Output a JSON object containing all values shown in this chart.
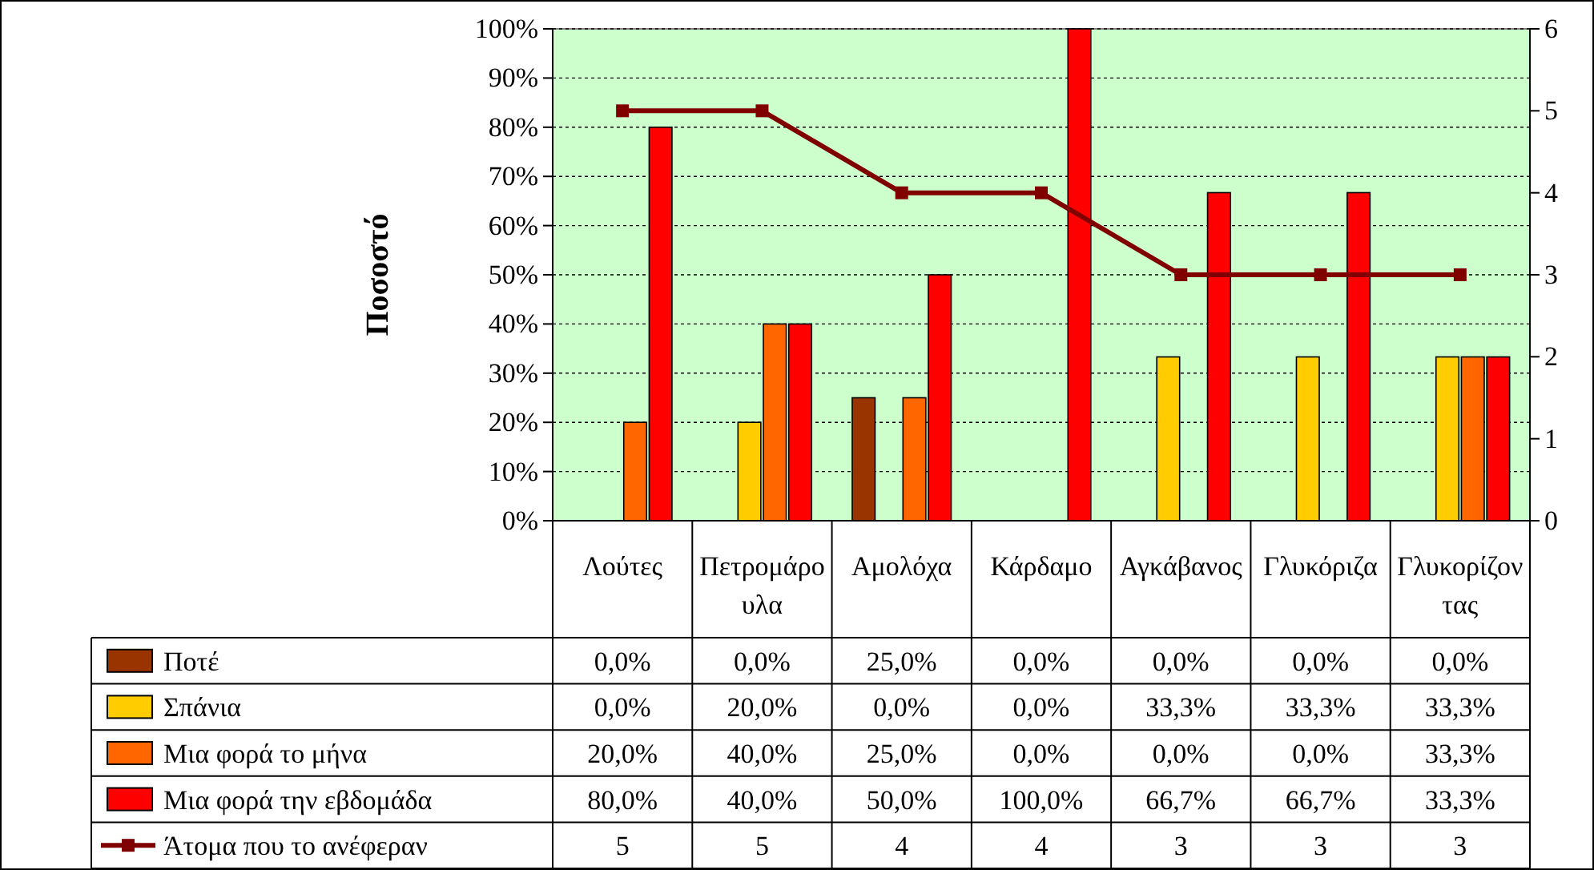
{
  "chart_data": {
    "type": "bar",
    "ylabel": "Ποσοστό",
    "categories": [
      "Λούτες",
      "Πετρομάρουλα",
      "Αμολόχα",
      "Κάρδαμο",
      "Αγκάβανος",
      "Γλυκόριζα",
      "Γλυκορίζοντας"
    ],
    "series": [
      {
        "name": "Ποτέ",
        "color": "#993300",
        "values": [
          0,
          0,
          25,
          0,
          0,
          0,
          0
        ],
        "value_labels": [
          "0,0%",
          "0,0%",
          "25,0%",
          "0,0%",
          "0,0%",
          "0,0%",
          "0,0%"
        ]
      },
      {
        "name": "Σπάνια",
        "color": "#ffcc00",
        "values": [
          0,
          20,
          0,
          0,
          33.3,
          33.3,
          33.3
        ],
        "value_labels": [
          "0,0%",
          "20,0%",
          "0,0%",
          "0,0%",
          "33,3%",
          "33,3%",
          "33,3%"
        ]
      },
      {
        "name": "Μια φορά το μήνα",
        "color": "#ff6600",
        "values": [
          20,
          40,
          25,
          0,
          0,
          0,
          33.3
        ],
        "value_labels": [
          "20,0%",
          "40,0%",
          "25,0%",
          "0,0%",
          "0,0%",
          "0,0%",
          "33,3%"
        ]
      },
      {
        "name": "Μια φορά την εβδομάδα",
        "color": "#ff0000",
        "values": [
          80,
          40,
          50,
          100,
          66.7,
          66.7,
          33.3
        ],
        "value_labels": [
          "80,0%",
          "40,0%",
          "50,0%",
          "100,0%",
          "66,7%",
          "66,7%",
          "33,3%"
        ]
      },
      {
        "name": "Άτομα που το ανέφεραν",
        "type": "line",
        "axis": "y2",
        "color": "#800000",
        "values": [
          5,
          5,
          4,
          4,
          3,
          3,
          3
        ],
        "value_labels": [
          "5",
          "5",
          "4",
          "4",
          "3",
          "3",
          "3"
        ]
      }
    ],
    "ylim": [
      0,
      100
    ],
    "yticks": [
      {
        "value": 0,
        "label": "0%"
      },
      {
        "value": 10,
        "label": "10%"
      },
      {
        "value": 20,
        "label": "20%"
      },
      {
        "value": 30,
        "label": "30%"
      },
      {
        "value": 40,
        "label": "40%"
      },
      {
        "value": 50,
        "label": "50%"
      },
      {
        "value": 60,
        "label": "60%"
      },
      {
        "value": 70,
        "label": "70%"
      },
      {
        "value": 80,
        "label": "80%"
      },
      {
        "value": 90,
        "label": "90%"
      },
      {
        "value": 100,
        "label": "100%"
      }
    ],
    "y2lim": [
      0,
      6
    ],
    "y2ticks": [
      0,
      1,
      2,
      3,
      4,
      5,
      6
    ],
    "grid": "y",
    "legend": "bottom",
    "marker": "square"
  }
}
